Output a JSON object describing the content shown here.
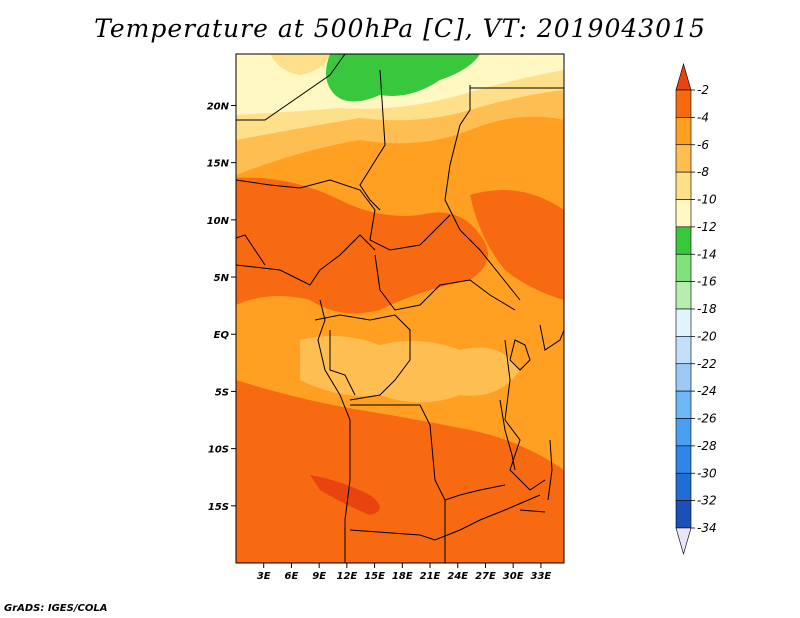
{
  "title": "Temperature at 500hPa [C], VT: 2019043015",
  "credit": "GrADS: IGES/COLA",
  "map": {
    "lat_ticks": [
      {
        "label": "20N",
        "value": 20
      },
      {
        "label": "15N",
        "value": 15
      },
      {
        "label": "10N",
        "value": 10
      },
      {
        "label": "5N",
        "value": 5
      },
      {
        "label": "EQ",
        "value": 0
      },
      {
        "label": "5S",
        "value": -5
      },
      {
        "label": "10S",
        "value": -10
      },
      {
        "label": "15S",
        "value": -15
      }
    ],
    "lon_ticks": [
      {
        "label": "3E",
        "value": 3
      },
      {
        "label": "6E",
        "value": 6
      },
      {
        "label": "9E",
        "value": 9
      },
      {
        "label": "12E",
        "value": 12
      },
      {
        "label": "15E",
        "value": 15
      },
      {
        "label": "18E",
        "value": 18
      },
      {
        "label": "21E",
        "value": 21
      },
      {
        "label": "24E",
        "value": 24
      },
      {
        "label": "27E",
        "value": 27
      },
      {
        "label": "30E",
        "value": 30
      },
      {
        "label": "33E",
        "value": 33
      }
    ],
    "lat_range": [
      -20,
      24.5
    ],
    "lon_range": [
      0,
      35.5
    ]
  },
  "colorbar": {
    "colors": [
      "#0a0a7a",
      "#1b50b8",
      "#1f6ed4",
      "#2f86e6",
      "#4a9ff0",
      "#6db7f5",
      "#9ccaf5",
      "#c3e0fa",
      "#e2f3fb",
      "#b7edb0",
      "#7fe27a",
      "#39c83d",
      "#fff8c2",
      "#ffe08a",
      "#ffbe52",
      "#ffa022",
      "#f76a12",
      "#e94410"
    ],
    "labels": [
      "-2",
      "-4",
      "-6",
      "-8",
      "-10",
      "-12",
      "-14",
      "-16",
      "-18",
      "-20",
      "-22",
      "-24",
      "-26",
      "-28",
      "-30",
      "-32",
      "-34"
    ]
  }
}
